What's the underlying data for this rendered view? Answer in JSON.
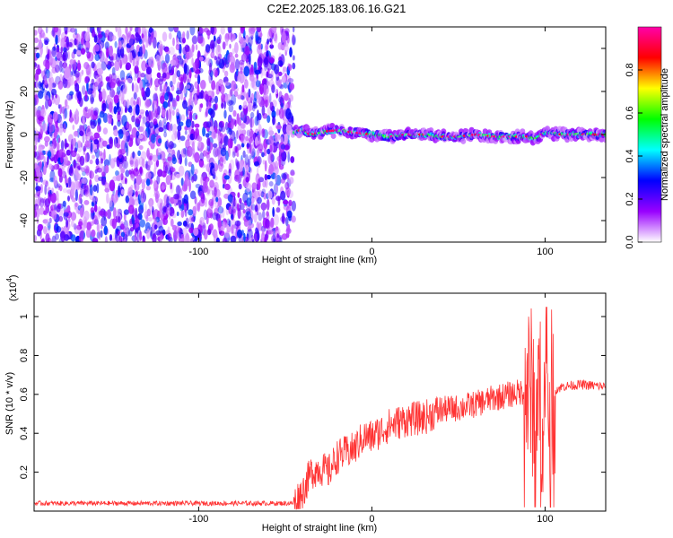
{
  "title": "C2E2.2025.183.06.16.G21",
  "chart_data": [
    {
      "type": "heatmap",
      "xlabel": "Height of straight line (km)",
      "ylabel": "Frequency (Hz)",
      "xlim": [
        -195,
        135
      ],
      "ylim": [
        -50,
        50
      ],
      "xticks": [
        -100,
        0,
        100
      ],
      "yticks": [
        -40,
        -20,
        0,
        20,
        40
      ],
      "colorbar": {
        "label": "Normalized spectral amplitude",
        "range": [
          0.0,
          1.0
        ],
        "ticks": [
          0.0,
          0.2,
          0.4,
          0.6,
          0.8
        ],
        "colors": [
          "#ffffff",
          "#9900ff",
          "#0000ff",
          "#00ffff",
          "#00ff00",
          "#ffff00",
          "#ff0000",
          "#ff00aa"
        ]
      },
      "noise_region_x": [
        -195,
        -45
      ],
      "ridge": {
        "x": [
          -45,
          -40,
          -35,
          -30,
          -20,
          -10,
          0,
          10,
          20,
          30,
          40,
          50,
          60,
          70,
          80,
          90,
          95,
          100,
          110,
          120,
          135
        ],
        "y": [
          1,
          2,
          0,
          1,
          2,
          1,
          0,
          -1,
          0,
          0,
          -1,
          -1,
          0,
          -1,
          -1,
          -1,
          -2,
          1,
          0,
          0,
          0
        ]
      }
    },
    {
      "type": "line",
      "xlabel": "Height of straight line (km)",
      "ylabel": "SNR (10 * v/v)",
      "yscale_label": "(x10",
      "yscale_exp": "4",
      "xlim": [
        -195,
        135
      ],
      "ylim": [
        0,
        1.12
      ],
      "xticks": [
        -100,
        0,
        100
      ],
      "yticks": [
        0.2,
        0.4,
        0.6,
        0.8,
        1.0
      ],
      "color": "#ff3333",
      "series": [
        {
          "x": [
            -195,
            -150,
            -100,
            -60,
            -45,
            -40,
            -35,
            -30,
            -25,
            -20,
            -15,
            -10,
            -5,
            0,
            10,
            20,
            30,
            40,
            50,
            60,
            70,
            80,
            90,
            95,
            100,
            105,
            110,
            120,
            135
          ],
          "y": [
            0.04,
            0.04,
            0.04,
            0.04,
            0.04,
            0.1,
            0.2,
            0.22,
            0.2,
            0.28,
            0.3,
            0.32,
            0.38,
            0.38,
            0.44,
            0.47,
            0.48,
            0.52,
            0.53,
            0.55,
            0.58,
            0.6,
            0.62,
            0.6,
            0.5,
            0.62,
            0.64,
            0.65,
            0.64
          ]
        }
      ]
    }
  ]
}
